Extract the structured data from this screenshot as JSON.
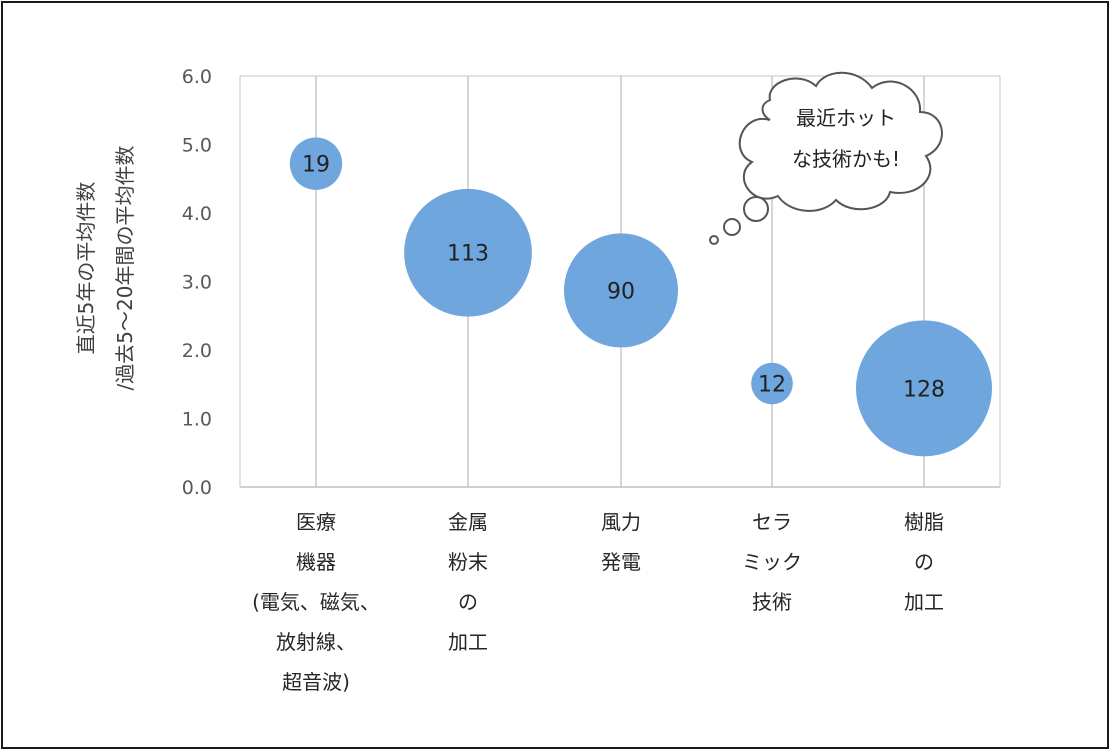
{
  "chart_data": {
    "type": "bubble",
    "title": "",
    "ylabel": [
      "直近5年の平均件数",
      "/過去5～20年間の平均件数"
    ],
    "xlabel": "",
    "ylim": [
      0,
      6
    ],
    "yticks": [
      "0.0",
      "1.0",
      "2.0",
      "3.0",
      "4.0",
      "5.0",
      "6.0"
    ],
    "grid": {
      "vertical": true,
      "horizontal": false
    },
    "categories": [
      [
        "医療",
        "機器",
        "(電気、磁気、",
        "放射線、",
        "超音波)"
      ],
      [
        "金属",
        "粉末",
        "の",
        "加工"
      ],
      [
        "風力",
        "発電"
      ],
      [
        "セラ",
        "ミック",
        "技術"
      ],
      [
        "樹脂",
        "の",
        "加工"
      ]
    ],
    "points": [
      {
        "category_index": 0,
        "y": 4.72,
        "size": 19
      },
      {
        "category_index": 1,
        "y": 3.42,
        "size": 113
      },
      {
        "category_index": 2,
        "y": 2.87,
        "size": 90
      },
      {
        "category_index": 3,
        "y": 1.51,
        "size": 12
      },
      {
        "category_index": 4,
        "y": 1.44,
        "size": 128
      }
    ],
    "bubble_labels": [
      "19",
      "113",
      "90",
      "12",
      "128"
    ],
    "bubble_color": "#6fa6dd",
    "annotation": {
      "lines": [
        "最近ホット",
        "な技術かも!"
      ],
      "target_category_index": 3
    }
  }
}
